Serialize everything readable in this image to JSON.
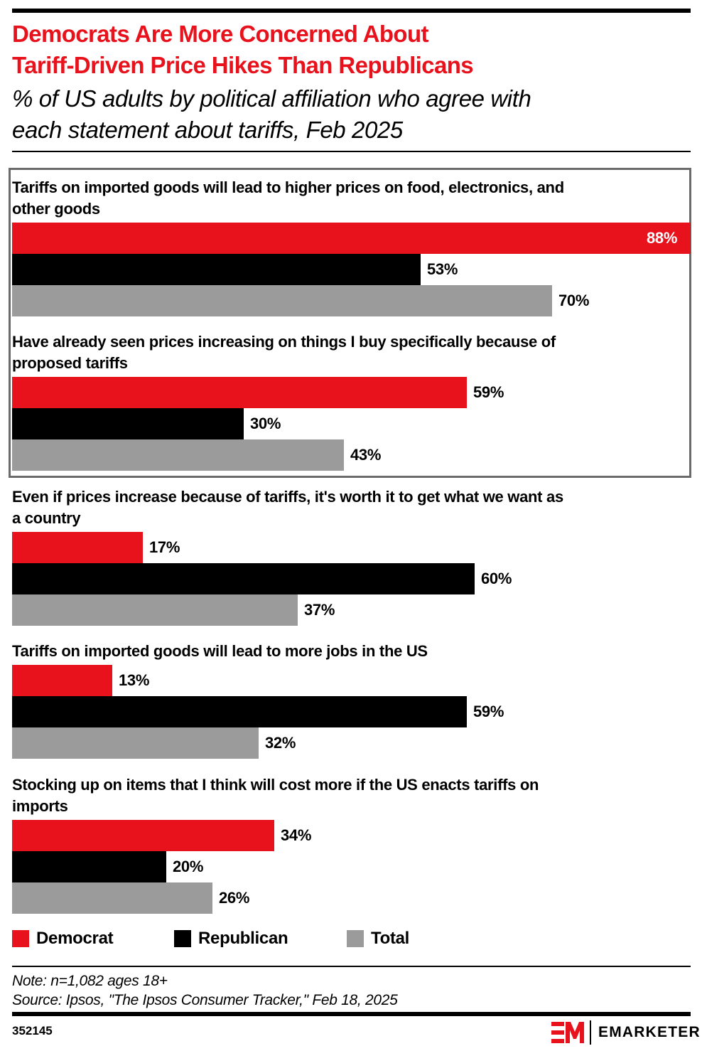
{
  "header": {
    "title_line1": "Democrats Are More Concerned About",
    "title_line2": "Tariff-Driven Price Hikes Than Republicans",
    "subtitle_line1": "% of US adults by political affiliation who agree with",
    "subtitle_line2": "each statement about tariffs, Feb 2025"
  },
  "colors": {
    "democrat": "#e8121c",
    "republican": "#000000",
    "total": "#9b9b9b",
    "title": "#e8121c"
  },
  "chart_data": {
    "type": "bar",
    "orientation": "horizontal",
    "title": "Democrats Are More Concerned About Tariff-Driven Price Hikes Than Republicans",
    "subtitle": "% of US adults by political affiliation who agree with each statement about tariffs, Feb 2025",
    "xlabel": "",
    "ylabel": "",
    "xlim": [
      0,
      88
    ],
    "grid": false,
    "legend_position": "bottom-left",
    "unit": "%",
    "categories": [
      "Tariffs on imported goods will lead to higher prices on food, electronics, and other goods",
      "Have already seen prices increasing on things I buy specifically because of proposed tariffs",
      "Even if prices increase because of tariffs, it's worth it to get what we want as a country",
      "Tariffs on imported goods will lead to more jobs in the US",
      "Stocking up on items that I think will cost more if the US enacts tariffs on imports"
    ],
    "category_lines": [
      [
        "Tariffs on imported goods will lead to higher prices on food, electronics, and",
        "other goods"
      ],
      [
        "Have already seen prices increasing on things I buy specifically because of",
        "proposed tariffs"
      ],
      [
        "Even if prices increase because of tariffs, it's worth it to get what we want as",
        "a country"
      ],
      [
        "Tariffs on imported goods will lead to more jobs in the US"
      ],
      [
        "Stocking up on items that I think will cost more if the US enacts tariffs on",
        "imports"
      ]
    ],
    "highlighted_categories": [
      0,
      1
    ],
    "series": [
      {
        "name": "Democrat",
        "color": "#e8121c",
        "values": [
          88,
          59,
          17,
          13,
          34
        ]
      },
      {
        "name": "Republican",
        "color": "#000000",
        "values": [
          53,
          30,
          60,
          59,
          20
        ]
      },
      {
        "name": "Total",
        "color": "#9b9b9b",
        "values": [
          70,
          43,
          37,
          32,
          26
        ]
      }
    ]
  },
  "legend": [
    {
      "label": "Democrat",
      "color": "#e8121c"
    },
    {
      "label": "Republican",
      "color": "#000000"
    },
    {
      "label": "Total",
      "color": "#9b9b9b"
    }
  ],
  "footer": {
    "note": "Note: n=1,082 ages 18+",
    "source": "Source: Ipsos, \"The Ipsos Consumer Tracker,\" Feb 18, 2025",
    "chart_id": "352145",
    "brand": "EMARKETER"
  }
}
